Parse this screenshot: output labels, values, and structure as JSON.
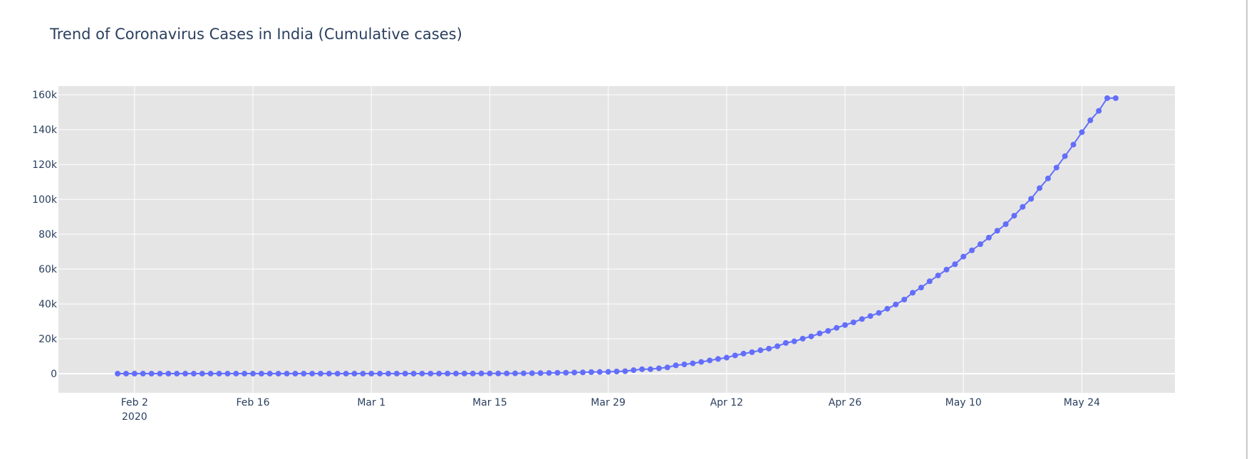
{
  "chart_data": {
    "type": "line",
    "title": "Trend of Coronavirus Cases in India (Cumulative cases)",
    "xlabel": "",
    "ylabel": "",
    "mode": "lines+markers",
    "line_color": "#636efa",
    "plot_bg": "#e5e5e5",
    "grid": true,
    "xlim": [
      "2020-01-24",
      "2020-06-04"
    ],
    "ylim": [
      -11000,
      165000
    ],
    "y_ticks": [
      {
        "value": 0,
        "label": "0"
      },
      {
        "value": 20000,
        "label": "20k"
      },
      {
        "value": 40000,
        "label": "40k"
      },
      {
        "value": 60000,
        "label": "60k"
      },
      {
        "value": 80000,
        "label": "80k"
      },
      {
        "value": 100000,
        "label": "100k"
      },
      {
        "value": 120000,
        "label": "120k"
      },
      {
        "value": 140000,
        "label": "140k"
      },
      {
        "value": 160000,
        "label": "160k"
      }
    ],
    "x_ticks": [
      {
        "value": "2020-02-02",
        "label": "Feb 2",
        "sublabel": "2020"
      },
      {
        "value": "2020-02-16",
        "label": "Feb 16"
      },
      {
        "value": "2020-03-01",
        "label": "Mar 1"
      },
      {
        "value": "2020-03-15",
        "label": "Mar 15"
      },
      {
        "value": "2020-03-29",
        "label": "Mar 29"
      },
      {
        "value": "2020-04-12",
        "label": "Apr 12"
      },
      {
        "value": "2020-04-26",
        "label": "Apr 26"
      },
      {
        "value": "2020-05-10",
        "label": "May 10"
      },
      {
        "value": "2020-05-24",
        "label": "May 24"
      }
    ],
    "series": [
      {
        "x": [
          "2020-01-31",
          "2020-02-01",
          "2020-02-02",
          "2020-02-03",
          "2020-02-04",
          "2020-02-05",
          "2020-02-06",
          "2020-02-07",
          "2020-02-08",
          "2020-02-09",
          "2020-02-10",
          "2020-02-11",
          "2020-02-12",
          "2020-02-13",
          "2020-02-14",
          "2020-02-15",
          "2020-02-16",
          "2020-02-17",
          "2020-02-18",
          "2020-02-19",
          "2020-02-20",
          "2020-02-21",
          "2020-02-22",
          "2020-02-23",
          "2020-02-24",
          "2020-02-25",
          "2020-02-26",
          "2020-02-27",
          "2020-02-28",
          "2020-02-29",
          "2020-03-01",
          "2020-03-02",
          "2020-03-03",
          "2020-03-04",
          "2020-03-05",
          "2020-03-06",
          "2020-03-07",
          "2020-03-08",
          "2020-03-09",
          "2020-03-10",
          "2020-03-11",
          "2020-03-12",
          "2020-03-13",
          "2020-03-14",
          "2020-03-15",
          "2020-03-16",
          "2020-03-17",
          "2020-03-18",
          "2020-03-19",
          "2020-03-20",
          "2020-03-21",
          "2020-03-22",
          "2020-03-23",
          "2020-03-24",
          "2020-03-25",
          "2020-03-26",
          "2020-03-27",
          "2020-03-28",
          "2020-03-29",
          "2020-03-30",
          "2020-03-31",
          "2020-04-01",
          "2020-04-02",
          "2020-04-03",
          "2020-04-04",
          "2020-04-05",
          "2020-04-06",
          "2020-04-07",
          "2020-04-08",
          "2020-04-09",
          "2020-04-10",
          "2020-04-11",
          "2020-04-12",
          "2020-04-13",
          "2020-04-14",
          "2020-04-15",
          "2020-04-16",
          "2020-04-17",
          "2020-04-18",
          "2020-04-19",
          "2020-04-20",
          "2020-04-21",
          "2020-04-22",
          "2020-04-23",
          "2020-04-24",
          "2020-04-25",
          "2020-04-26",
          "2020-04-27",
          "2020-04-28",
          "2020-04-29",
          "2020-04-30",
          "2020-05-01",
          "2020-05-02",
          "2020-05-03",
          "2020-05-04",
          "2020-05-05",
          "2020-05-06",
          "2020-05-07",
          "2020-05-08",
          "2020-05-09",
          "2020-05-10",
          "2020-05-11",
          "2020-05-12",
          "2020-05-13",
          "2020-05-14",
          "2020-05-15",
          "2020-05-16",
          "2020-05-17",
          "2020-05-18",
          "2020-05-19",
          "2020-05-20",
          "2020-05-21",
          "2020-05-22",
          "2020-05-23",
          "2020-05-24",
          "2020-05-25",
          "2020-05-26",
          "2020-05-27",
          "2020-05-28"
        ],
        "y": [
          1,
          1,
          2,
          3,
          3,
          3,
          3,
          3,
          3,
          3,
          3,
          3,
          3,
          3,
          3,
          3,
          3,
          3,
          3,
          3,
          3,
          3,
          3,
          3,
          3,
          3,
          3,
          3,
          3,
          3,
          3,
          5,
          6,
          28,
          30,
          31,
          34,
          39,
          43,
          56,
          62,
          73,
          82,
          102,
          113,
          119,
          142,
          156,
          194,
          244,
          330,
          396,
          499,
          536,
          657,
          727,
          887,
          987,
          1024,
          1251,
          1397,
          1998,
          2543,
          2567,
          3082,
          3588,
          4778,
          5311,
          5916,
          6725,
          7598,
          8446,
          9205,
          10453,
          11487,
          12322,
          13430,
          14352,
          15722,
          17615,
          18539,
          20080,
          21370,
          23077,
          24530,
          26283,
          27890,
          29451,
          31324,
          33062,
          34863,
          37257,
          39699,
          42505,
          46437,
          49400,
          52987,
          56351,
          59695,
          62808,
          67161,
          70768,
          74292,
          78055,
          81997,
          85784,
          90648,
          95698,
          100328,
          106475,
          112028,
          118226,
          124794,
          131423,
          138536,
          145380,
          150793,
          158086,
          158100
        ]
      }
    ]
  }
}
